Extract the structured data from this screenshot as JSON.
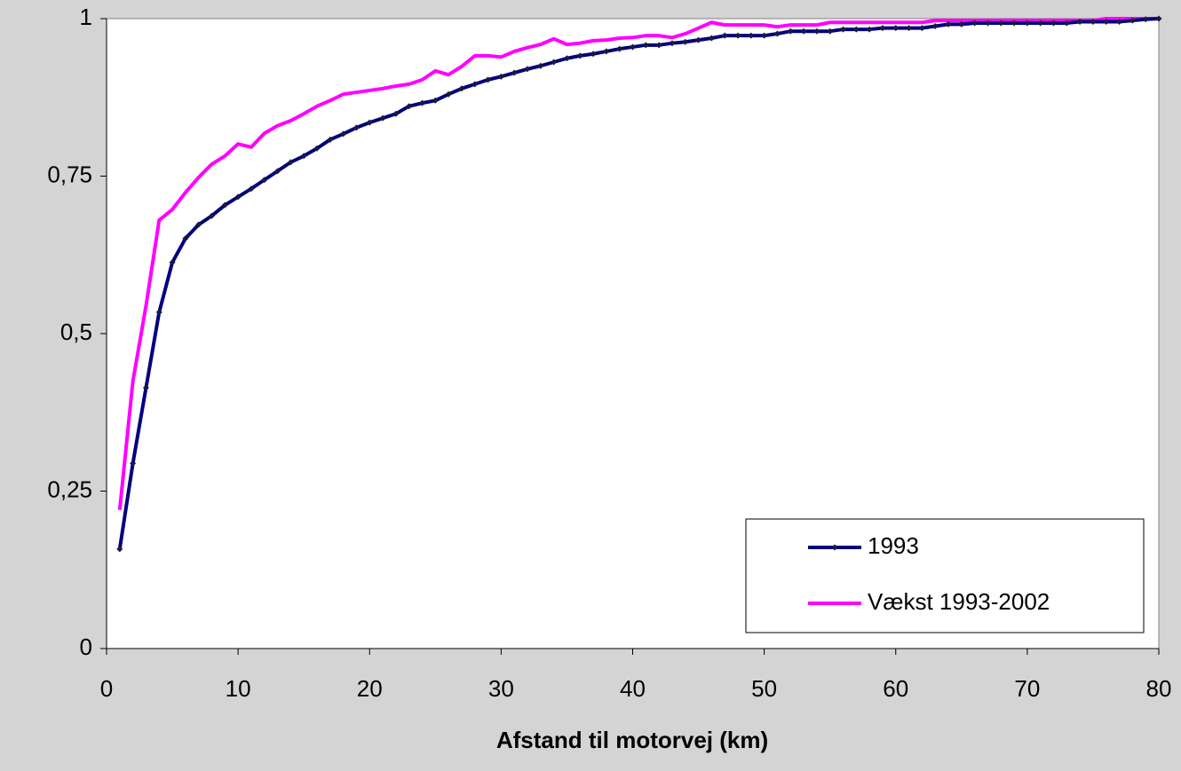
{
  "chart_data": {
    "type": "line",
    "x_label": "Afstand til motorvej (km)",
    "x": [
      1,
      2,
      3,
      4,
      5,
      6,
      7,
      8,
      9,
      10,
      11,
      12,
      13,
      14,
      15,
      16,
      17,
      18,
      19,
      20,
      21,
      22,
      23,
      24,
      25,
      26,
      27,
      28,
      29,
      30,
      31,
      32,
      33,
      34,
      35,
      36,
      37,
      38,
      39,
      40,
      41,
      42,
      43,
      44,
      45,
      46,
      47,
      48,
      49,
      50,
      51,
      52,
      53,
      54,
      55,
      56,
      57,
      58,
      59,
      60,
      61,
      62,
      63,
      64,
      65,
      66,
      67,
      68,
      69,
      70,
      71,
      72,
      73,
      74,
      75,
      76,
      77,
      78,
      79,
      80
    ],
    "series": [
      {
        "name": "1993",
        "color": "#000080",
        "markers": true,
        "values": [
          0.158,
          0.294,
          0.414,
          0.534,
          0.613,
          0.651,
          0.673,
          0.687,
          0.704,
          0.717,
          0.73,
          0.744,
          0.758,
          0.772,
          0.782,
          0.794,
          0.808,
          0.817,
          0.827,
          0.835,
          0.842,
          0.849,
          0.861,
          0.866,
          0.87,
          0.88,
          0.889,
          0.896,
          0.903,
          0.908,
          0.914,
          0.92,
          0.925,
          0.931,
          0.937,
          0.941,
          0.944,
          0.948,
          0.952,
          0.955,
          0.958,
          0.958,
          0.961,
          0.963,
          0.966,
          0.969,
          0.973,
          0.973,
          0.973,
          0.973,
          0.976,
          0.98,
          0.98,
          0.98,
          0.98,
          0.983,
          0.983,
          0.983,
          0.985,
          0.985,
          0.985,
          0.985,
          0.988,
          0.991,
          0.991,
          0.993,
          0.993,
          0.993,
          0.993,
          0.993,
          0.993,
          0.993,
          0.993,
          0.995,
          0.995,
          0.995,
          0.995,
          0.997,
          0.999,
          1.0
        ]
      },
      {
        "name": "Vækst 1993-2002",
        "color": "#ff00ff",
        "markers": false,
        "values": [
          0.22,
          0.424,
          0.544,
          0.68,
          0.697,
          0.724,
          0.748,
          0.769,
          0.782,
          0.801,
          0.796,
          0.818,
          0.83,
          0.838,
          0.849,
          0.861,
          0.87,
          0.88,
          0.883,
          0.886,
          0.889,
          0.893,
          0.896,
          0.903,
          0.917,
          0.911,
          0.924,
          0.941,
          0.941,
          0.939,
          0.948,
          0.954,
          0.959,
          0.968,
          0.959,
          0.961,
          0.965,
          0.966,
          0.969,
          0.97,
          0.973,
          0.973,
          0.97,
          0.976,
          0.985,
          0.994,
          0.99,
          0.99,
          0.99,
          0.99,
          0.987,
          0.99,
          0.99,
          0.99,
          0.994,
          0.994,
          0.994,
          0.994,
          0.994,
          0.994,
          0.994,
          0.994,
          0.997,
          0.997,
          0.997,
          0.997,
          0.997,
          0.997,
          0.997,
          0.997,
          0.997,
          0.997,
          0.997,
          0.997,
          0.997,
          1.0,
          1.0,
          1.0,
          1.0,
          1.0
        ]
      }
    ],
    "xlim": [
      0,
      80
    ],
    "xticks": [
      0,
      10,
      20,
      30,
      40,
      50,
      60,
      70,
      80
    ],
    "ylim": [
      0,
      1
    ],
    "yticks": [
      0,
      {
        "value": 0.25,
        "label": "0,25"
      },
      {
        "value": 0.5,
        "label": "0,5"
      },
      {
        "value": 0.75,
        "label": "0,75"
      },
      1
    ],
    "grid": false,
    "legend": "lower right"
  }
}
